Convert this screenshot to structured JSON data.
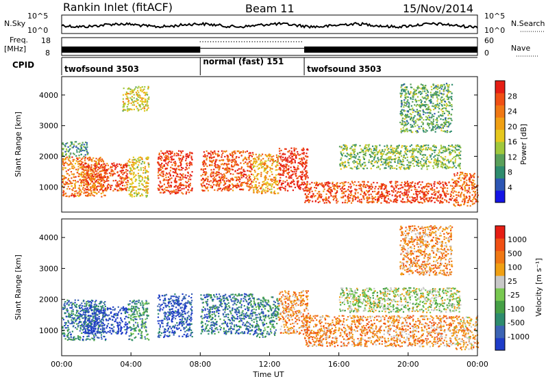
{
  "header": {
    "station": "Rankin Inlet (fitACF)",
    "beam": "Beam 11",
    "date": "15/Nov/2014"
  },
  "noise_panel": {
    "left_label": "N.Sky",
    "left_ticks": [
      "10^5",
      "10^0"
    ],
    "right_label": "N.Search",
    "right_ticks": [
      "10^5",
      "10^0"
    ]
  },
  "freq_panel": {
    "left_label_1": "Freq.",
    "left_label_2": "[MHz]",
    "left_ticks": [
      "18",
      "8"
    ],
    "right_label": "Nave",
    "right_ticks": [
      "60",
      "0"
    ]
  },
  "cpid_panel": {
    "label": "CPID",
    "segments": [
      {
        "name": "twofsound 3503",
        "start_h": 0,
        "end_h": 8
      },
      {
        "name": "normal (fast) 151",
        "start_h": 8,
        "end_h": 14
      },
      {
        "name": "twofsound 3503",
        "start_h": 14,
        "end_h": 24
      }
    ]
  },
  "x_axis": {
    "label": "Time UT",
    "ticks": [
      "00:00",
      "04:00",
      "08:00",
      "12:00",
      "16:00",
      "20:00",
      "00:00"
    ],
    "range_h": [
      0,
      24
    ]
  },
  "chart_data": [
    {
      "type": "heatmap",
      "name": "power",
      "ylabel": "Slant Range [km]",
      "yticks": [
        "1000",
        "2000",
        "3000",
        "4000"
      ],
      "ylim": [
        180,
        4600
      ],
      "xlim": [
        0,
        24
      ],
      "colorbar_label": "Power [dB]",
      "colorbar_ticks": [
        "4",
        "8",
        "12",
        "16",
        "20",
        "24",
        "28"
      ],
      "colorbar_colors": [
        "#1414e6",
        "#2d56b4",
        "#2e8c6e",
        "#5aa05a",
        "#a0c83c",
        "#e6c81e",
        "#f0a014",
        "#f07814",
        "#f05014",
        "#e61e14"
      ],
      "scatter_regions": [
        {
          "t": [
            0.0,
            2.5
          ],
          "r": [
            700,
            2000
          ],
          "level": 0.75
        },
        {
          "t": [
            0.0,
            1.5
          ],
          "r": [
            2000,
            2500
          ],
          "level": 0.3
        },
        {
          "t": [
            1.2,
            3.8
          ],
          "r": [
            900,
            1800
          ],
          "level": 0.85
        },
        {
          "t": [
            3.8,
            5.0
          ],
          "r": [
            700,
            2000
          ],
          "level": 0.55
        },
        {
          "t": [
            5.5,
            7.5
          ],
          "r": [
            800,
            2200
          ],
          "level": 0.9
        },
        {
          "t": [
            8.0,
            11.0
          ],
          "r": [
            900,
            2200
          ],
          "level": 0.85
        },
        {
          "t": [
            11.0,
            12.5
          ],
          "r": [
            800,
            2100
          ],
          "level": 0.65
        },
        {
          "t": [
            12.5,
            14.2
          ],
          "r": [
            900,
            2300
          ],
          "level": 0.95
        },
        {
          "t": [
            14.0,
            18.5
          ],
          "r": [
            500,
            1200
          ],
          "level": 0.85
        },
        {
          "t": [
            18.5,
            22.5
          ],
          "r": [
            500,
            1200
          ],
          "level": 0.9
        },
        {
          "t": [
            22.5,
            24.0
          ],
          "r": [
            400,
            1500
          ],
          "level": 0.8
        },
        {
          "t": [
            3.5,
            5.0
          ],
          "r": [
            3500,
            4300
          ],
          "level": 0.55
        },
        {
          "t": [
            16.0,
            23.0
          ],
          "r": [
            1600,
            2400
          ],
          "level": 0.4
        },
        {
          "t": [
            19.5,
            22.5
          ],
          "r": [
            2800,
            4400
          ],
          "level": 0.35
        }
      ]
    },
    {
      "type": "heatmap",
      "name": "velocity",
      "ylabel": "Slant Range [km]",
      "yticks": [
        "1000",
        "2000",
        "3000",
        "4000"
      ],
      "ylim": [
        180,
        4600
      ],
      "xlim": [
        0,
        24
      ],
      "colorbar_label": "Velocity [m s⁻¹]",
      "colorbar_ticks": [
        "1000",
        "500",
        "100",
        "25",
        "-25",
        "-100",
        "-500",
        "-1000"
      ],
      "colorbar_colors": [
        "#1e3cc8",
        "#3c64b4",
        "#2e8c6e",
        "#46a046",
        "#78c850",
        "#c8c8c8",
        "#f0a014",
        "#f07814",
        "#f05014",
        "#e61e14"
      ],
      "scatter_regions": [
        {
          "t": [
            0.0,
            2.5
          ],
          "r": [
            700,
            2000
          ],
          "level": 0.2
        },
        {
          "t": [
            1.2,
            3.8
          ],
          "r": [
            900,
            1800
          ],
          "level": 0.05
        },
        {
          "t": [
            3.8,
            5.0
          ],
          "r": [
            700,
            2000
          ],
          "level": 0.3
        },
        {
          "t": [
            5.5,
            7.5
          ],
          "r": [
            800,
            2200
          ],
          "level": 0.08
        },
        {
          "t": [
            8.0,
            11.0
          ],
          "r": [
            900,
            2200
          ],
          "level": 0.2
        },
        {
          "t": [
            11.0,
            12.5
          ],
          "r": [
            800,
            2100
          ],
          "level": 0.25
        },
        {
          "t": [
            12.5,
            14.2
          ],
          "r": [
            900,
            2300
          ],
          "level": 0.7
        },
        {
          "t": [
            14.0,
            18.5
          ],
          "r": [
            500,
            1500
          ],
          "level": 0.72
        },
        {
          "t": [
            18.5,
            22.5
          ],
          "r": [
            500,
            1500
          ],
          "level": 0.7
        },
        {
          "t": [
            22.5,
            24.0
          ],
          "r": [
            400,
            1500
          ],
          "level": 0.65
        },
        {
          "t": [
            16.0,
            23.0
          ],
          "r": [
            1600,
            2400
          ],
          "level": 0.5
        },
        {
          "t": [
            19.5,
            22.5
          ],
          "r": [
            2800,
            4400
          ],
          "level": 0.7
        }
      ]
    }
  ]
}
